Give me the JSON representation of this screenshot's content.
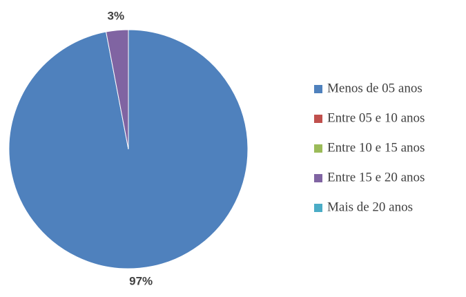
{
  "chart_data": {
    "type": "pie",
    "categories": [
      "Menos de 05 anos",
      "Entre 05 e 10 anos",
      "Entre 10 e 15 anos",
      "Entre 15 e 20 anos",
      "Mais de 20 anos"
    ],
    "values": [
      97,
      0,
      0,
      3,
      0
    ],
    "value_labels": [
      "97%",
      null,
      null,
      "3%",
      null
    ],
    "colors": [
      "#4f81bd",
      "#c0504d",
      "#9bbb59",
      "#8064a2",
      "#4bacc6"
    ],
    "legend": "right"
  }
}
